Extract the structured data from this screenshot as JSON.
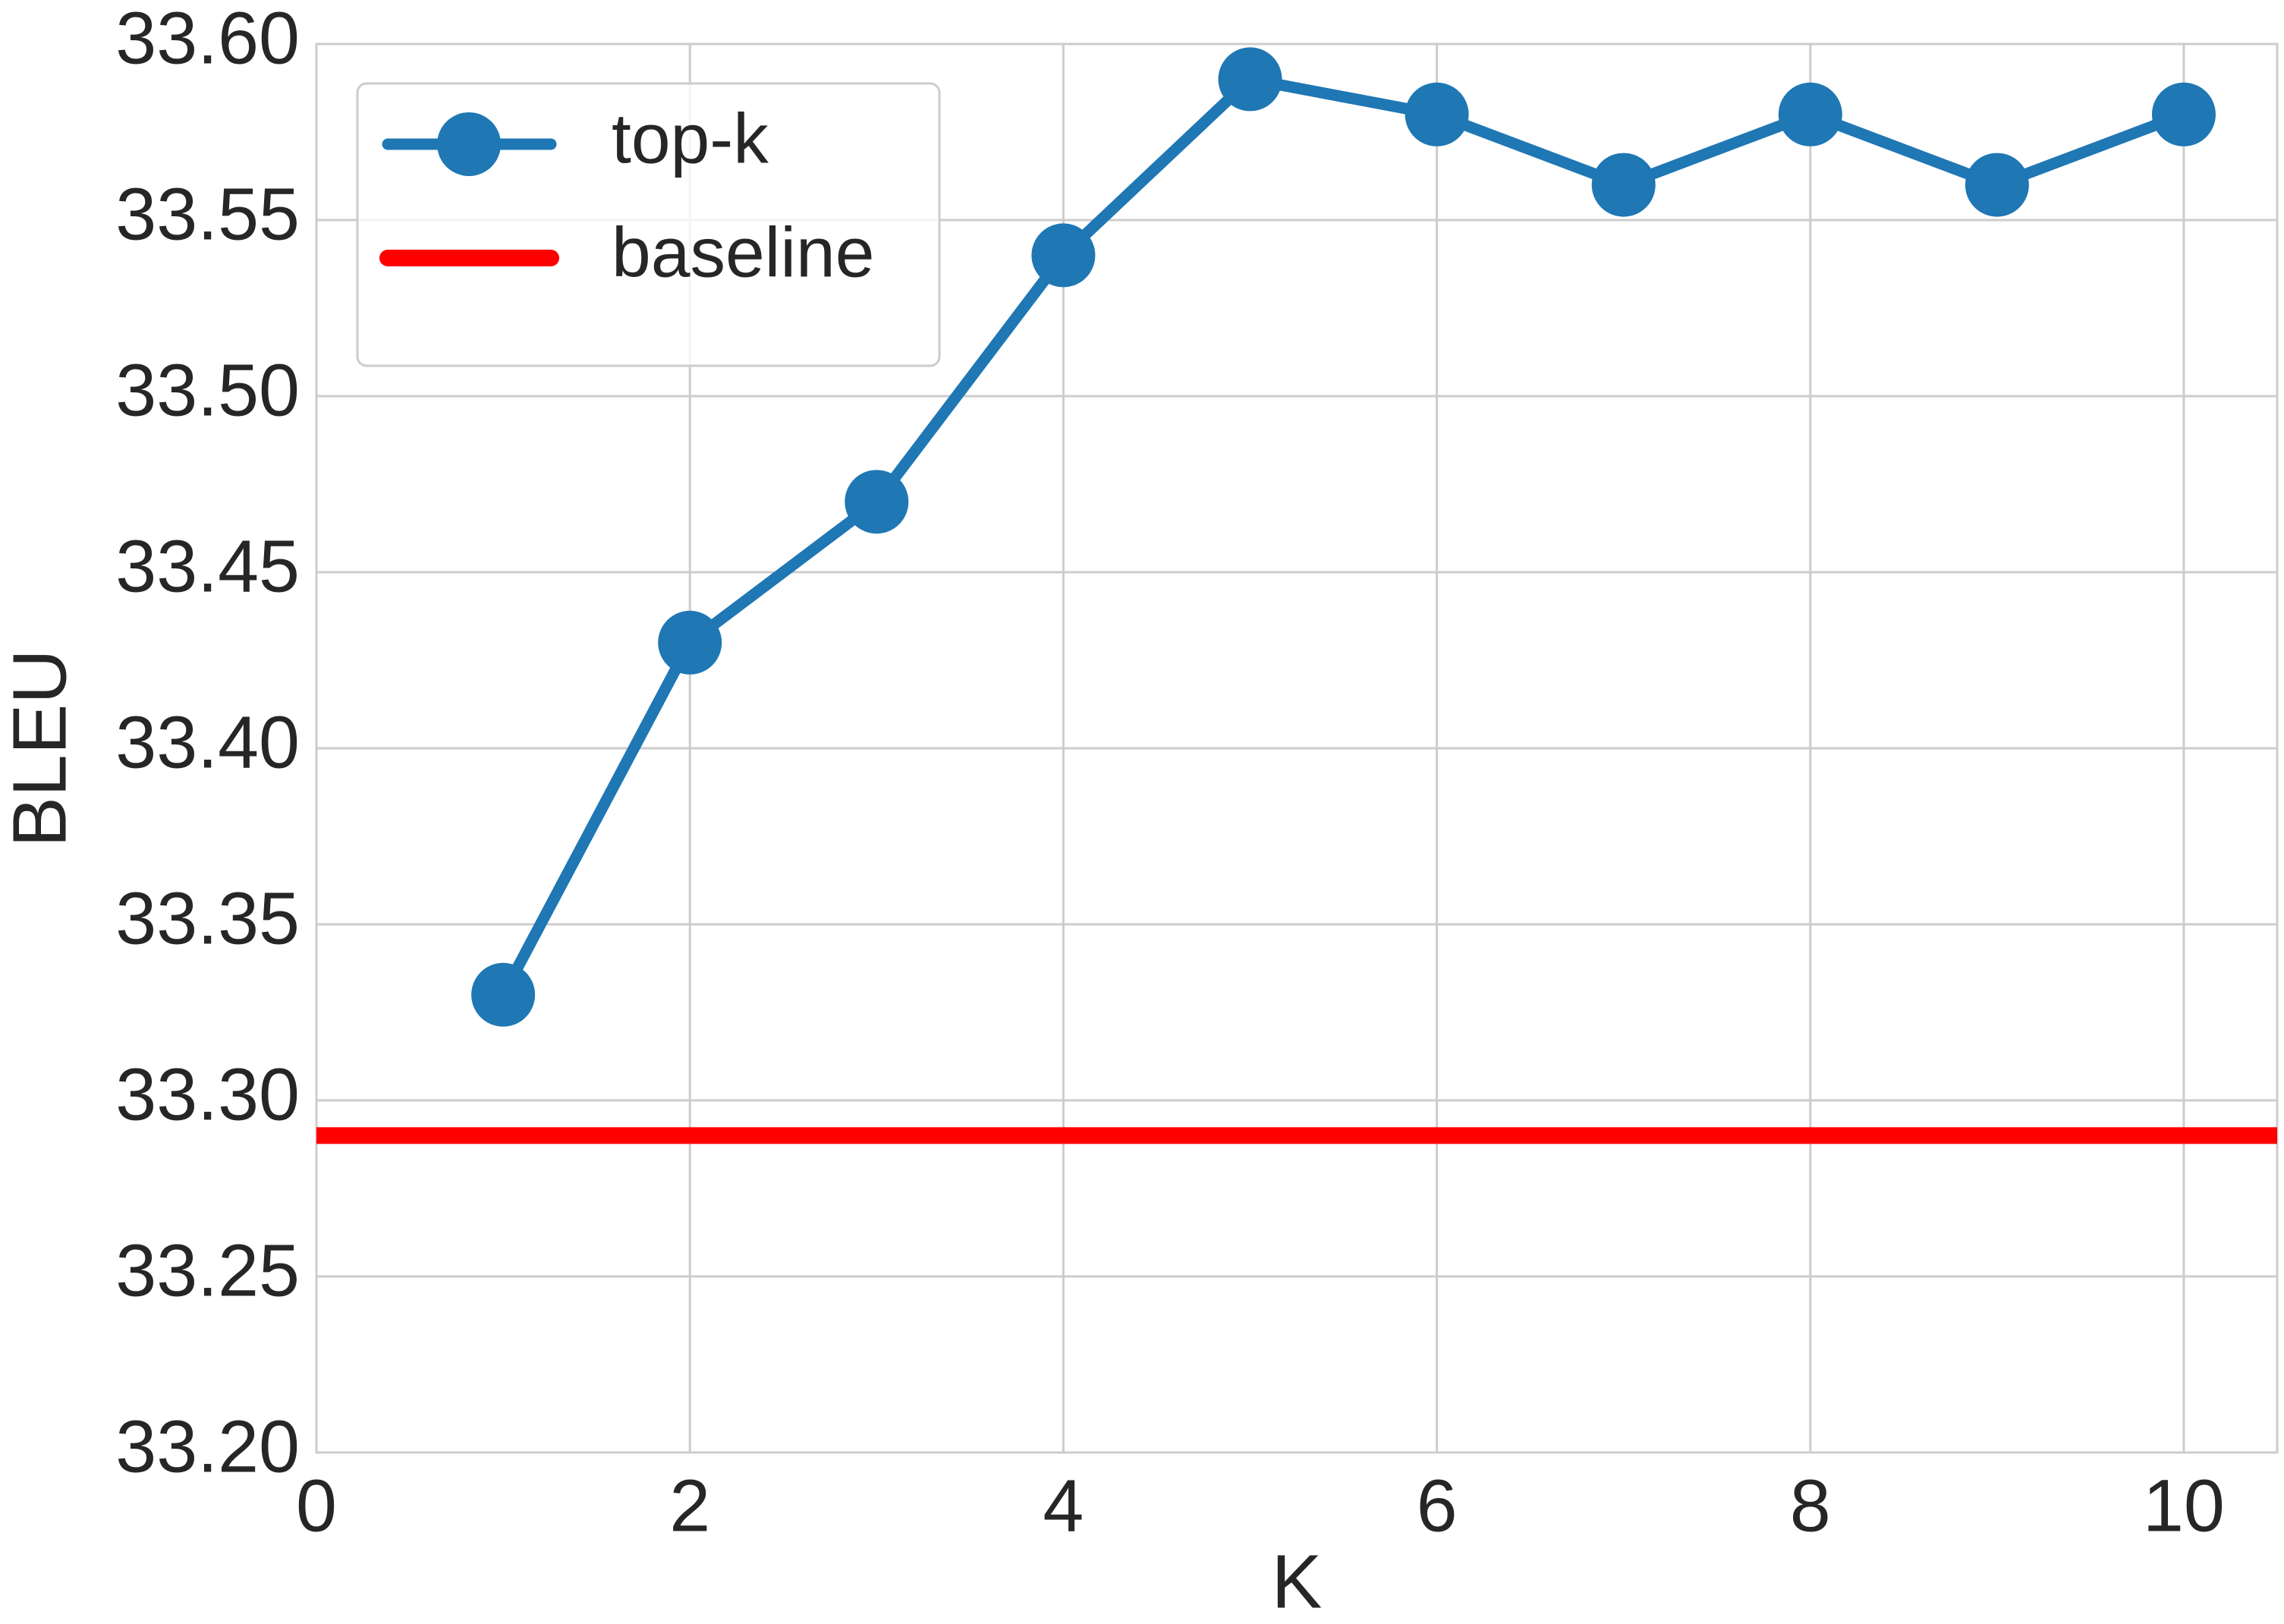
{
  "chart_data": {
    "type": "line",
    "x_label": "K",
    "y_label": "BLEU",
    "x": [
      1,
      2,
      3,
      4,
      5,
      6,
      7,
      8,
      9,
      10
    ],
    "series": [
      {
        "name": "top-k",
        "color": "#1f77b4",
        "values": [
          33.33,
          33.43,
          33.47,
          33.54,
          33.59,
          33.58,
          33.56,
          33.58,
          33.56,
          33.58
        ]
      }
    ],
    "hlines": [
      {
        "name": "baseline",
        "color": "#ff0000",
        "y": 33.29
      }
    ],
    "xlim": [
      0,
      10.5
    ],
    "xticks": [
      0,
      2,
      4,
      6,
      8,
      10
    ],
    "ylim": [
      33.2,
      33.6
    ],
    "yticks": [
      {
        "value": 33.2,
        "label": "33.20"
      },
      {
        "value": 33.25,
        "label": "33.25"
      },
      {
        "value": 33.3,
        "label": "33.30"
      },
      {
        "value": 33.35,
        "label": "33.35"
      },
      {
        "value": 33.4,
        "label": "33.40"
      },
      {
        "value": 33.45,
        "label": "33.45"
      },
      {
        "value": 33.5,
        "label": "33.50"
      },
      {
        "value": 33.55,
        "label": "33.55"
      },
      {
        "value": 33.6,
        "label": "33.60"
      }
    ],
    "grid": true,
    "legend": "upper left"
  }
}
